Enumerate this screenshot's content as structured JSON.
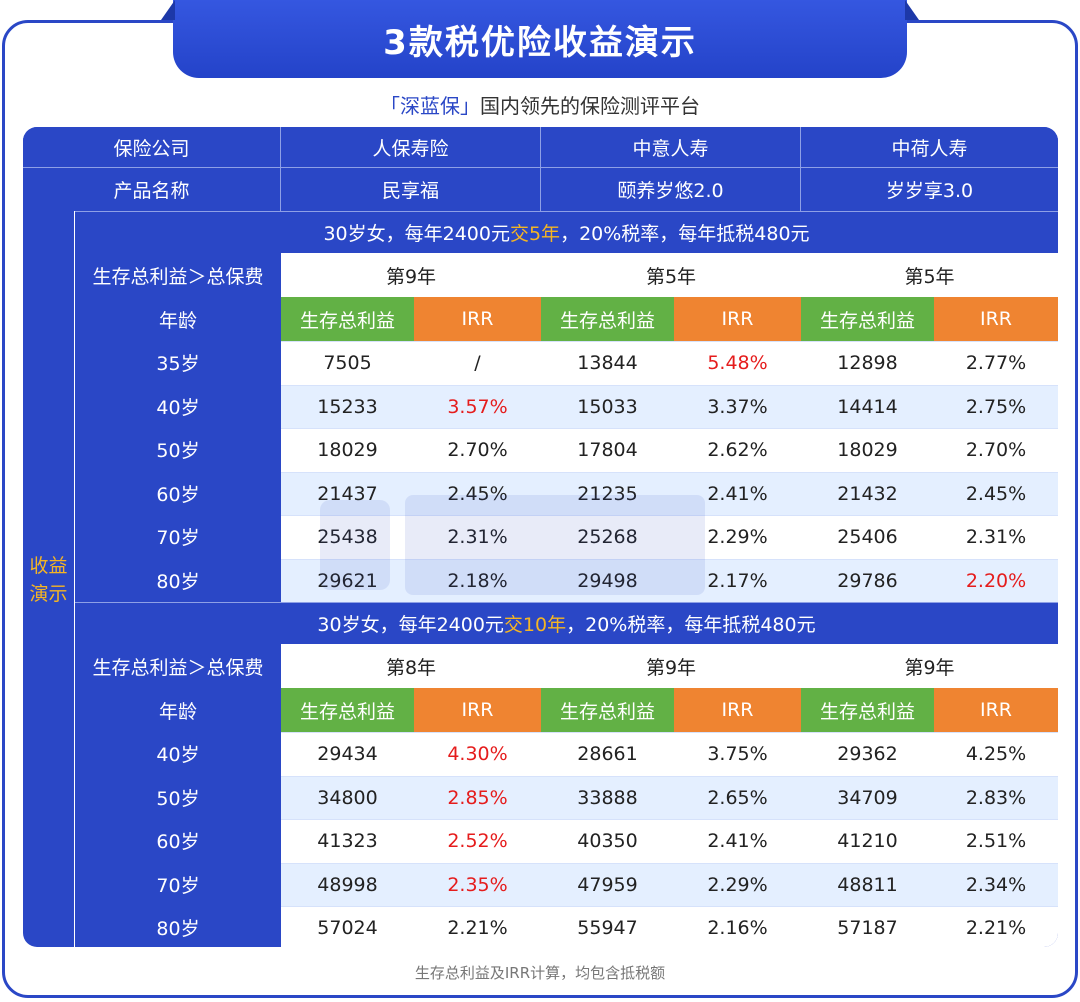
{
  "title": "3款税优险收益演示",
  "subtitle": {
    "brand": "「深蓝保」",
    "text": "国内领先的保险测评平台"
  },
  "header": {
    "company_label": "保险公司",
    "product_label": "产品名称",
    "companies": [
      "人保寿险",
      "中意人寿",
      "中荷人寿"
    ],
    "products": [
      "民享福",
      "颐养岁悠2.0",
      "岁岁享3.0"
    ]
  },
  "side_label": "收益演示",
  "section1": {
    "banner_pre": "30岁女，每年2400元",
    "banner_highlight": "交5年",
    "banner_post": "，20%税率，每年抵税480元",
    "breakeven_label": "生存总利益＞总保费",
    "breakeven": [
      "第9年",
      "第5年",
      "第5年"
    ],
    "age_label": "年龄",
    "col_benefit": "生存总利益",
    "col_irr": "IRR",
    "rows": [
      {
        "age": "35岁",
        "values": [
          "7505",
          "/",
          "13844",
          "5.48%",
          "12898",
          "2.77%"
        ],
        "red": [
          3
        ]
      },
      {
        "age": "40岁",
        "values": [
          "15233",
          "3.57%",
          "15033",
          "3.37%",
          "14414",
          "2.75%"
        ],
        "red": [
          1
        ]
      },
      {
        "age": "50岁",
        "values": [
          "18029",
          "2.70%",
          "17804",
          "2.62%",
          "18029",
          "2.70%"
        ],
        "red": []
      },
      {
        "age": "60岁",
        "values": [
          "21437",
          "2.45%",
          "21235",
          "2.41%",
          "21432",
          "2.45%"
        ],
        "red": []
      },
      {
        "age": "70岁",
        "values": [
          "25438",
          "2.31%",
          "25268",
          "2.29%",
          "25406",
          "2.31%"
        ],
        "red": []
      },
      {
        "age": "80岁",
        "values": [
          "29621",
          "2.18%",
          "29498",
          "2.17%",
          "29786",
          "2.20%"
        ],
        "red": [
          5
        ]
      }
    ]
  },
  "section2": {
    "banner_pre": "30岁女，每年2400元",
    "banner_highlight": "交10年",
    "banner_post": "，20%税率，每年抵税480元",
    "breakeven_label": "生存总利益＞总保费",
    "breakeven": [
      "第8年",
      "第9年",
      "第9年"
    ],
    "age_label": "年龄",
    "col_benefit": "生存总利益",
    "col_irr": "IRR",
    "rows": [
      {
        "age": "40岁",
        "values": [
          "29434",
          "4.30%",
          "28661",
          "3.75%",
          "29362",
          "4.25%"
        ],
        "red": [
          1
        ]
      },
      {
        "age": "50岁",
        "values": [
          "34800",
          "2.85%",
          "33888",
          "2.65%",
          "34709",
          "2.83%"
        ],
        "red": [
          1
        ]
      },
      {
        "age": "60岁",
        "values": [
          "41323",
          "2.52%",
          "40350",
          "2.41%",
          "41210",
          "2.51%"
        ],
        "red": [
          1
        ]
      },
      {
        "age": "70岁",
        "values": [
          "48998",
          "2.35%",
          "47959",
          "2.29%",
          "48811",
          "2.34%"
        ],
        "red": [
          1
        ]
      },
      {
        "age": "80岁",
        "values": [
          "57024",
          "2.21%",
          "55947",
          "2.16%",
          "57187",
          "2.21%"
        ],
        "red": []
      }
    ]
  },
  "footnote": "生存总利益及IRR计算，均包含抵税额",
  "colors": {
    "primary_blue": "#2a47c6",
    "green": "#62b145",
    "orange": "#ef8431",
    "highlight_gold": "#f5b523",
    "red": "#e51c1c",
    "row_tint": "#e4efff"
  }
}
